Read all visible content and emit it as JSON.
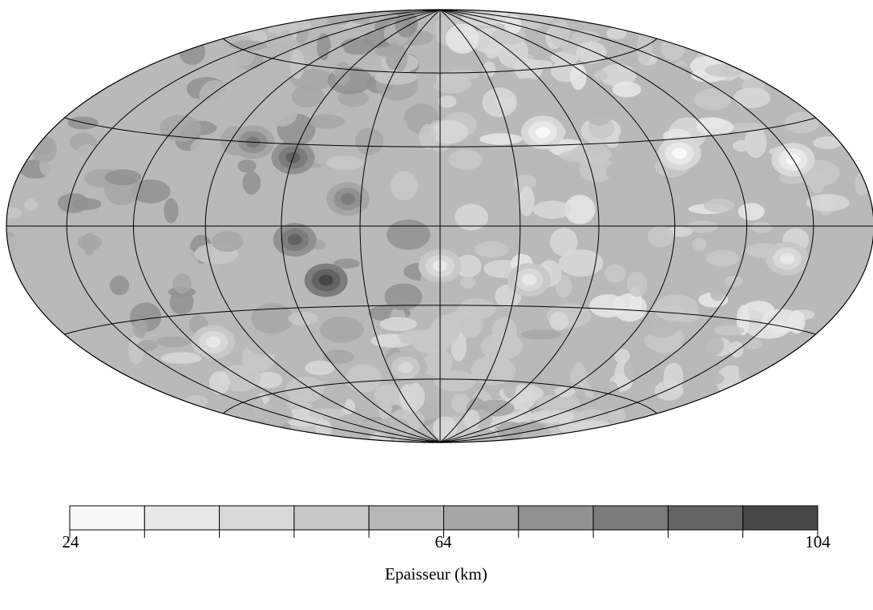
{
  "map": {
    "projection": "Hammer-Aitoff (equal-area), full globe",
    "graticule": {
      "meridian_step_deg": 30,
      "parallel_step_deg": 30
    },
    "value_unit": "km",
    "notable_features": [
      {
        "lon_deg": -45,
        "lat_deg": -20,
        "level": 10
      },
      {
        "lon_deg": -60,
        "lat_deg": 25,
        "level": 9
      },
      {
        "lon_deg": -55,
        "lat_deg": -5,
        "level": 9
      },
      {
        "lon_deg": -35,
        "lat_deg": 10,
        "level": 8
      },
      {
        "lon_deg": -80,
        "lat_deg": 30,
        "level": 8
      },
      {
        "lon_deg": 0,
        "lat_deg": -15,
        "level": 2
      },
      {
        "lon_deg": 45,
        "lat_deg": 35,
        "level": 1
      },
      {
        "lon_deg": 100,
        "lat_deg": 25,
        "level": 1
      },
      {
        "lon_deg": 150,
        "lat_deg": 20,
        "level": 1
      },
      {
        "lon_deg": 35,
        "lat_deg": -20,
        "level": 2
      },
      {
        "lon_deg": 140,
        "lat_deg": -10,
        "level": 2
      },
      {
        "lon_deg": -110,
        "lat_deg": -40,
        "level": 2
      },
      {
        "lon_deg": -20,
        "lat_deg": -55,
        "level": 3
      }
    ]
  },
  "colorbar": {
    "min": 24,
    "max": 104,
    "tick_labels": [
      "24",
      "64",
      "104"
    ],
    "title": "Epaisseur (km)",
    "colors": [
      "#f8f8f8",
      "#e8e8e8",
      "#d8d8d8",
      "#c8c8c8",
      "#b7b7b7",
      "#a6a6a6",
      "#919191",
      "#7c7c7c",
      "#636363",
      "#474747"
    ]
  }
}
